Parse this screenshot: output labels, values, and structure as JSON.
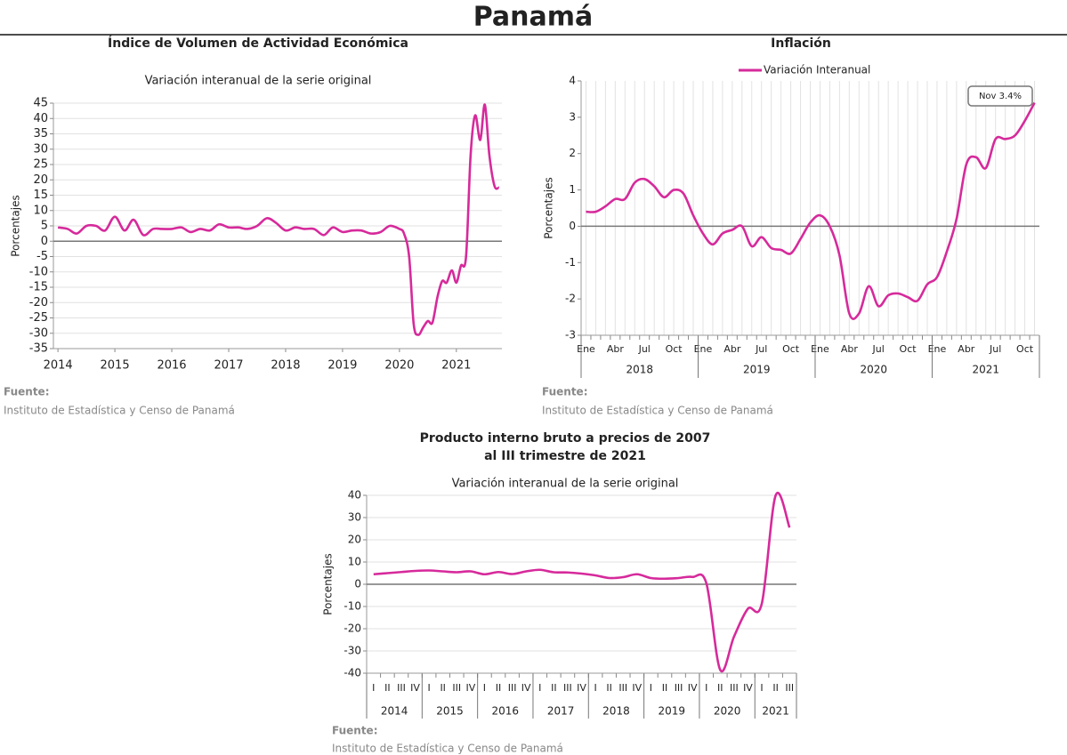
{
  "page_title": "Panamá",
  "chart_data": [
    {
      "type": "line",
      "title": "Índice de Volumen de  Actividad Económica",
      "subtitle": "Variación interanual de la serie original",
      "y_label": "Porcentajes",
      "x": [
        2014,
        2014.17,
        2014.33,
        2014.5,
        2014.67,
        2014.83,
        2015,
        2015.17,
        2015.33,
        2015.5,
        2015.67,
        2015.83,
        2016,
        2016.17,
        2016.33,
        2016.5,
        2016.67,
        2016.83,
        2017,
        2017.17,
        2017.33,
        2017.5,
        2017.67,
        2017.83,
        2018,
        2018.17,
        2018.33,
        2018.5,
        2018.67,
        2018.83,
        2019,
        2019.17,
        2019.33,
        2019.5,
        2019.67,
        2019.83,
        2020,
        2020.08,
        2020.17,
        2020.25,
        2020.33,
        2020.42,
        2020.5,
        2020.58,
        2020.67,
        2020.75,
        2020.83,
        2020.92,
        2021,
        2021.08,
        2021.17,
        2021.25,
        2021.33,
        2021.42,
        2021.5,
        2021.58,
        2021.67,
        2021.75
      ],
      "values": [
        4.5,
        4,
        2.5,
        5,
        5,
        3.5,
        8,
        3.5,
        7,
        2,
        4,
        4,
        4,
        4.5,
        3,
        4,
        3.5,
        5.5,
        4.5,
        4.5,
        4,
        5,
        7.5,
        6,
        3.5,
        4.5,
        4,
        4,
        2,
        4.5,
        3,
        3.5,
        3.5,
        2.5,
        3,
        5,
        4,
        2.5,
        -5,
        -27,
        -30.5,
        -28,
        -26,
        -26.5,
        -18,
        -13,
        -13.5,
        -9.5,
        -13.5,
        -8,
        -5,
        28,
        41,
        33,
        44.5,
        28,
        18,
        17.5
      ],
      "color": "#d62a9b",
      "xlim": [
        2013.92,
        2021.8
      ],
      "xticks": [
        2014,
        2015,
        2016,
        2017,
        2018,
        2019,
        2020,
        2021
      ],
      "ylim": [
        -35,
        45
      ],
      "yticks": [
        -35,
        -30,
        -25,
        -20,
        -15,
        -10,
        -5,
        0,
        5,
        10,
        15,
        20,
        25,
        30,
        35,
        40,
        45
      ],
      "grid": "y",
      "source_label": "Fuente:",
      "source": "Instituto de Estadística y Censo de Panamá"
    },
    {
      "type": "line",
      "title": "Inflación",
      "y_label": "Porcentajes",
      "categories": [
        "Ene",
        null,
        null,
        "Abr",
        null,
        null,
        "Jul",
        null,
        null,
        "Oct",
        null,
        null,
        "Ene",
        null,
        null,
        "Abr",
        null,
        null,
        "Jul",
        null,
        null,
        "Oct",
        null,
        null,
        "Ene",
        null,
        null,
        "Abr",
        null,
        null,
        "Jul",
        null,
        null,
        "Oct",
        null,
        null,
        "Ene",
        null,
        null,
        "Abr",
        null,
        null,
        "Jul",
        null,
        null,
        "Oct",
        null
      ],
      "groups": [
        "2018",
        "2019",
        "2020",
        "2021"
      ],
      "series": [
        {
          "name": "Variación Interanual",
          "color": "#d62a9b",
          "values": [
            0.4,
            0.4,
            0.55,
            0.75,
            0.75,
            1.2,
            1.3,
            1.1,
            0.8,
            1.0,
            0.9,
            0.3,
            -0.2,
            -0.5,
            -0.2,
            -0.1,
            0,
            -0.55,
            -0.3,
            -0.6,
            -0.65,
            -0.75,
            -0.35,
            0.1,
            0.3,
            0,
            -0.8,
            -2.4,
            -2.4,
            -1.65,
            -2.2,
            -1.9,
            -1.85,
            -1.95,
            -2.05,
            -1.6,
            -1.4,
            -0.7,
            0.2,
            1.7,
            1.9,
            1.6,
            2.4,
            2.4,
            2.5,
            2.9,
            3.4
          ]
        }
      ],
      "annotation": "Nov 3.4%",
      "ylim": [
        -3,
        4
      ],
      "yticks": [
        -3,
        -2,
        -1,
        0,
        1,
        2,
        3,
        4
      ],
      "grid": "x",
      "legend": "top",
      "source_label": "Fuente:",
      "source": "Instituto de Estadística y Censo de Panamá"
    },
    {
      "type": "line",
      "title": [
        "Producto interno bruto a precios de 2007",
        "al III trimestre de 2021"
      ],
      "subtitle": "Variación interanual de la serie original",
      "y_label": "Porcentajes",
      "categories": [
        "I",
        "II",
        "III",
        "IV",
        "I",
        "II",
        "III",
        "IV",
        "I",
        "II",
        "III",
        "IV",
        "I",
        "II",
        "III",
        "IV",
        "I",
        "II",
        "III",
        "IV",
        "I",
        "II",
        "III",
        "IV",
        "I",
        "II",
        "III",
        "IV",
        "I",
        "II",
        "III"
      ],
      "groups": [
        "2014",
        "2015",
        "2016",
        "2017",
        "2018",
        "2019",
        "2020",
        "2021"
      ],
      "values": [
        4.5,
        5,
        5.5,
        6,
        6.2,
        5.8,
        5.4,
        5.8,
        4.5,
        5.5,
        4.6,
        5.8,
        6.5,
        5.4,
        5.3,
        4.8,
        4,
        2.8,
        3.2,
        4.5,
        2.8,
        2.5,
        2.8,
        3.3,
        0.5,
        -38.5,
        -23.5,
        -11,
        -8.7,
        40,
        25.5
      ],
      "color": "#d62a9b",
      "ylim": [
        -40,
        40
      ],
      "yticks": [
        -40,
        -30,
        -20,
        -10,
        0,
        10,
        20,
        30,
        40
      ],
      "grid": "y",
      "source_label": "Fuente:",
      "source": "Instituto de Estadística y Censo de Panamá"
    }
  ]
}
